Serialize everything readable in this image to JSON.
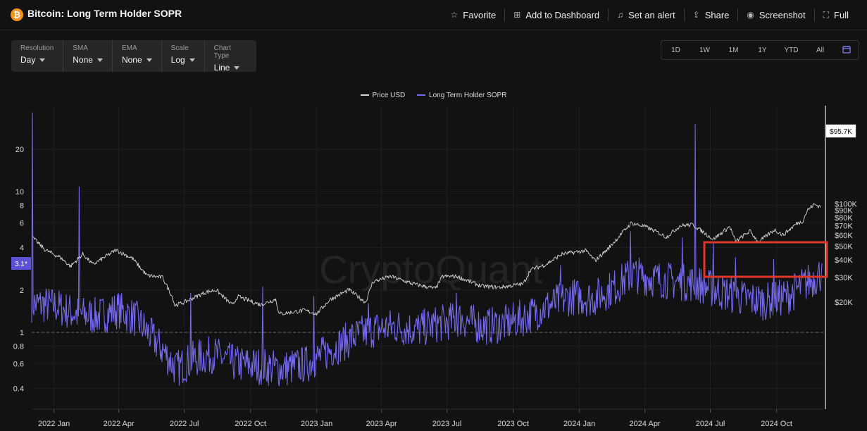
{
  "header": {
    "logo_glyph": "₿",
    "title": "Bitcoin: Long Term Holder SOPR",
    "actions": [
      {
        "label": "Favorite",
        "icon": "star-icon",
        "glyph": "☆"
      },
      {
        "label": "Add to Dashboard",
        "icon": "dashboard-add-icon",
        "glyph": "⊞"
      },
      {
        "label": "Set an alert",
        "icon": "bell-icon",
        "glyph": "♫"
      },
      {
        "label": "Share",
        "icon": "share-icon",
        "glyph": "⇪"
      },
      {
        "label": "Screenshot",
        "icon": "camera-icon",
        "glyph": "◉"
      },
      {
        "label": "Full",
        "icon": "fullscreen-icon",
        "glyph": "⛶"
      }
    ]
  },
  "options": [
    {
      "label": "Resolution",
      "value": "Day"
    },
    {
      "label": "SMA",
      "value": "None"
    },
    {
      "label": "EMA",
      "value": "None"
    },
    {
      "label": "Scale",
      "value": "Log"
    },
    {
      "label": "Chart Type",
      "value": "Line"
    }
  ],
  "ranges": [
    "1D",
    "1W",
    "1M",
    "1Y",
    "YTD",
    "All"
  ],
  "calendar_icon": "calendar-icon",
  "colors": {
    "background": "#121212",
    "price": "#d6d6d6",
    "sopr": "#7468ee",
    "highlight": "#e0352b",
    "sopr_badge": "#5b52d6",
    "price_badge": "#ffffff"
  },
  "chart_data": {
    "type": "line",
    "title": "Bitcoin: Long Term Holder SOPR",
    "scale": "log",
    "watermark": "CryptoQuant",
    "series": [
      {
        "name": "Price USD",
        "axis": "right"
      },
      {
        "name": "Long Term Holder SOPR",
        "axis": "left"
      }
    ],
    "x_ticks": [
      "2022 Jan",
      "2022 Apr",
      "2022 Jul",
      "2022 Oct",
      "2023 Jan",
      "2023 Apr",
      "2023 Jul",
      "2023 Oct",
      "2024 Jan",
      "2024 Apr",
      "2024 Jul",
      "2024 Oct"
    ],
    "x_range": [
      "2021-12-01",
      "2024-12-05"
    ],
    "left_ticks": [
      {
        "value": 20,
        "label": "20"
      },
      {
        "value": 10,
        "label": "10"
      },
      {
        "value": 8,
        "label": "8"
      },
      {
        "value": 6,
        "label": "6"
      },
      {
        "value": 4,
        "label": "4"
      },
      {
        "value": 2,
        "label": "2"
      },
      {
        "value": 1,
        "label": "1"
      },
      {
        "value": 0.8,
        "label": "0.8"
      },
      {
        "value": 0.6,
        "label": "0.6"
      },
      {
        "value": 0.4,
        "label": "0.4"
      }
    ],
    "right_ticks": [
      {
        "value": 100000,
        "label": "$100K"
      },
      {
        "value": 90000,
        "label": "$90K"
      },
      {
        "value": 80000,
        "label": "$80K"
      },
      {
        "value": 70000,
        "label": "$70K"
      },
      {
        "value": 60000,
        "label": "$60K"
      },
      {
        "value": 50000,
        "label": "$50K"
      },
      {
        "value": 40000,
        "label": "$40K"
      },
      {
        "value": 30000,
        "label": "$30K"
      },
      {
        "value": 20000,
        "label": "$20K"
      }
    ],
    "reference_line": 1,
    "current_sopr_label": "3.1*",
    "current_price_label": "$95.7K",
    "price_anchors": [
      [
        "2021-12-03",
        57000
      ],
      [
        "2021-12-20",
        47000
      ],
      [
        "2022-01-10",
        41500
      ],
      [
        "2022-01-24",
        36000
      ],
      [
        "2022-02-10",
        44000
      ],
      [
        "2022-02-24",
        37000
      ],
      [
        "2022-03-28",
        47000
      ],
      [
        "2022-04-20",
        41000
      ],
      [
        "2022-05-10",
        31000
      ],
      [
        "2022-06-01",
        30000
      ],
      [
        "2022-06-14",
        22000
      ],
      [
        "2022-06-18",
        19000
      ],
      [
        "2022-07-01",
        20000
      ],
      [
        "2022-07-30",
        23500
      ],
      [
        "2022-08-14",
        24500
      ],
      [
        "2022-09-06",
        19000
      ],
      [
        "2022-09-13",
        22000
      ],
      [
        "2022-10-15",
        19200
      ],
      [
        "2022-11-05",
        21000
      ],
      [
        "2022-11-10",
        16500
      ],
      [
        "2022-12-15",
        17500
      ],
      [
        "2023-01-01",
        16600
      ],
      [
        "2023-01-20",
        21000
      ],
      [
        "2023-02-15",
        24500
      ],
      [
        "2023-03-10",
        20000
      ],
      [
        "2023-03-20",
        28000
      ],
      [
        "2023-04-14",
        30500
      ],
      [
        "2023-05-15",
        27000
      ],
      [
        "2023-06-15",
        25000
      ],
      [
        "2023-06-25",
        30500
      ],
      [
        "2023-07-15",
        30500
      ],
      [
        "2023-08-18",
        26000
      ],
      [
        "2023-09-12",
        25500
      ],
      [
        "2023-10-15",
        27000
      ],
      [
        "2023-10-25",
        34000
      ],
      [
        "2023-11-15",
        37000
      ],
      [
        "2023-12-08",
        44000
      ],
      [
        "2024-01-10",
        46500
      ],
      [
        "2024-01-23",
        39500
      ],
      [
        "2024-02-10",
        48000
      ],
      [
        "2024-02-28",
        61000
      ],
      [
        "2024-03-13",
        73000
      ],
      [
        "2024-04-01",
        69000
      ],
      [
        "2024-04-18",
        63000
      ],
      [
        "2024-05-01",
        58000
      ],
      [
        "2024-05-20",
        70000
      ],
      [
        "2024-06-07",
        71000
      ],
      [
        "2024-06-25",
        61000
      ],
      [
        "2024-07-05",
        56000
      ],
      [
        "2024-07-28",
        69000
      ],
      [
        "2024-08-05",
        54000
      ],
      [
        "2024-08-25",
        64000
      ],
      [
        "2024-09-06",
        53500
      ],
      [
        "2024-09-28",
        65500
      ],
      [
        "2024-10-10",
        60000
      ],
      [
        "2024-10-29",
        72500
      ],
      [
        "2024-11-06",
        75000
      ],
      [
        "2024-11-13",
        90000
      ],
      [
        "2024-11-22",
        99000
      ],
      [
        "2024-12-01",
        95700
      ]
    ],
    "sopr_anchors": [
      [
        "2021-12-01",
        1.6
      ],
      [
        "2022-01-01",
        1.55
      ],
      [
        "2022-02-01",
        1.35
      ],
      [
        "2022-03-01",
        1.3
      ],
      [
        "2022-04-01",
        1.45
      ],
      [
        "2022-04-25",
        1.25
      ],
      [
        "2022-05-15",
        0.95
      ],
      [
        "2022-06-01",
        0.75
      ],
      [
        "2022-06-20",
        0.55
      ],
      [
        "2022-07-15",
        0.65
      ],
      [
        "2022-08-10",
        0.7
      ],
      [
        "2022-09-10",
        0.6
      ],
      [
        "2022-10-10",
        0.58
      ],
      [
        "2022-11-15",
        0.55
      ],
      [
        "2022-12-20",
        0.6
      ],
      [
        "2023-01-20",
        0.75
      ],
      [
        "2023-02-20",
        0.92
      ],
      [
        "2023-03-20",
        1.05
      ],
      [
        "2023-04-20",
        1.1
      ],
      [
        "2023-05-20",
        1.05
      ],
      [
        "2023-06-20",
        1.15
      ],
      [
        "2023-07-20",
        1.25
      ],
      [
        "2023-08-20",
        1.1
      ],
      [
        "2023-09-20",
        1.15
      ],
      [
        "2023-10-20",
        1.3
      ],
      [
        "2023-11-20",
        1.55
      ],
      [
        "2023-12-20",
        1.8
      ],
      [
        "2024-01-20",
        1.75
      ],
      [
        "2024-02-20",
        2.1
      ],
      [
        "2024-03-15",
        2.6
      ],
      [
        "2024-04-15",
        2.4
      ],
      [
        "2024-05-15",
        2.3
      ],
      [
        "2024-06-15",
        2.2
      ],
      [
        "2024-07-15",
        1.95
      ],
      [
        "2024-08-15",
        1.75
      ],
      [
        "2024-09-15",
        1.65
      ],
      [
        "2024-10-15",
        1.8
      ],
      [
        "2024-11-15",
        2.3
      ],
      [
        "2024-12-01",
        2.6
      ]
    ],
    "sopr_spikes": [
      [
        "2021-12-02",
        40
      ],
      [
        "2022-02-05",
        10.8
      ],
      [
        "2022-07-10",
        1.9
      ],
      [
        "2022-10-18",
        2.1
      ],
      [
        "2022-12-28",
        1.8
      ],
      [
        "2023-03-14",
        1.6
      ],
      [
        "2023-07-14",
        1.9
      ],
      [
        "2023-12-06",
        3.0
      ],
      [
        "2024-03-12",
        5.2
      ],
      [
        "2024-05-23",
        4.7
      ],
      [
        "2024-06-10",
        30
      ],
      [
        "2024-07-05",
        4.4
      ],
      [
        "2024-08-05",
        3.4
      ],
      [
        "2024-09-27",
        3.3
      ],
      [
        "2024-12-03",
        3.1
      ]
    ]
  }
}
